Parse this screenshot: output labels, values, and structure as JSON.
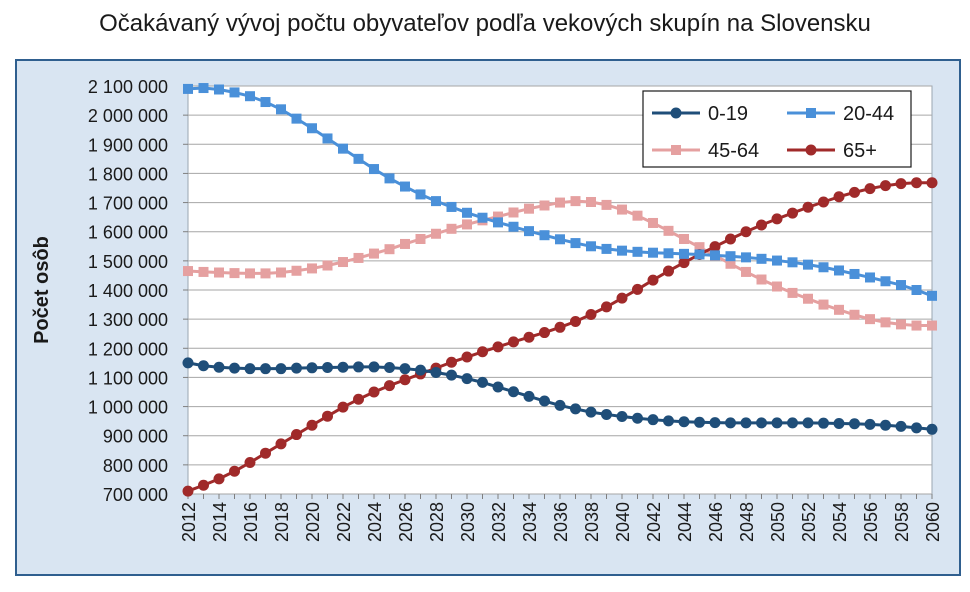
{
  "chart_data": {
    "type": "line",
    "title": "Očakávaný vývoj počtu obyvateľov podľa vekových skupín na Slovensku",
    "xlabel": "",
    "ylabel": "Počet osôb",
    "ylim": [
      700000,
      2100000
    ],
    "ytick_labels": [
      "700 000",
      "800 000",
      "900 000",
      "1 000 000",
      "1 100 000",
      "1 200 000",
      "1 300 000",
      "1 400 000",
      "1 500 000",
      "1 600 000",
      "1 700 000",
      "1 800 000",
      "1 900 000",
      "2 000 000",
      "2 100 000"
    ],
    "x": [
      2012,
      2013,
      2014,
      2015,
      2016,
      2017,
      2018,
      2019,
      2020,
      2021,
      2022,
      2023,
      2024,
      2025,
      2026,
      2027,
      2028,
      2029,
      2030,
      2031,
      2032,
      2033,
      2034,
      2035,
      2036,
      2037,
      2038,
      2039,
      2040,
      2041,
      2042,
      2043,
      2044,
      2045,
      2046,
      2047,
      2048,
      2049,
      2050,
      2051,
      2052,
      2053,
      2054,
      2055,
      2056,
      2057,
      2058,
      2059,
      2060
    ],
    "xtick_labels": [
      "2012",
      "2014",
      "2016",
      "2018",
      "2020",
      "2022",
      "2024",
      "2026",
      "2028",
      "2030",
      "2032",
      "2034",
      "2036",
      "2038",
      "2040",
      "2042",
      "2044",
      "2046",
      "2048",
      "2050",
      "2052",
      "2054",
      "2056",
      "2058",
      "2060"
    ],
    "grid": "horizontal",
    "legend_position": "top-right",
    "series": [
      {
        "name": "0-19",
        "color": "#1f4e79",
        "marker": "circle",
        "values": [
          1150000,
          1140000,
          1135000,
          1132000,
          1130000,
          1130000,
          1130000,
          1132000,
          1133000,
          1134000,
          1135000,
          1136000,
          1136000,
          1134000,
          1130000,
          1125000,
          1117000,
          1108000,
          1096000,
          1083000,
          1067000,
          1051000,
          1035000,
          1019000,
          1004000,
          992000,
          981000,
          973000,
          966000,
          960000,
          955000,
          951000,
          948000,
          946000,
          945000,
          944000,
          944000,
          944000,
          944000,
          944000,
          944000,
          943000,
          942000,
          941000,
          939000,
          936000,
          932000,
          927000,
          922000
        ]
      },
      {
        "name": "20-44",
        "color": "#4a90d9",
        "marker": "square",
        "values": [
          2090000,
          2093000,
          2088000,
          2078000,
          2065000,
          2045000,
          2020000,
          1988000,
          1955000,
          1920000,
          1885000,
          1850000,
          1815000,
          1783000,
          1755000,
          1728000,
          1705000,
          1685000,
          1665000,
          1648000,
          1632000,
          1617000,
          1602000,
          1588000,
          1574000,
          1561000,
          1550000,
          1541000,
          1535000,
          1531000,
          1528000,
          1526000,
          1524000,
          1522000,
          1519000,
          1516000,
          1512000,
          1507000,
          1501000,
          1495000,
          1487000,
          1478000,
          1467000,
          1455000,
          1443000,
          1430000,
          1417000,
          1400000,
          1380000
        ]
      },
      {
        "name": "45-64",
        "color": "#e5a0a0",
        "marker": "square",
        "values": [
          1465000,
          1462000,
          1460000,
          1458000,
          1457000,
          1457000,
          1460000,
          1466000,
          1474000,
          1484000,
          1496000,
          1510000,
          1525000,
          1540000,
          1558000,
          1575000,
          1593000,
          1610000,
          1625000,
          1639000,
          1652000,
          1666000,
          1679000,
          1690000,
          1700000,
          1705000,
          1702000,
          1692000,
          1676000,
          1655000,
          1630000,
          1603000,
          1575000,
          1547000,
          1518000,
          1490000,
          1462000,
          1436000,
          1412000,
          1390000,
          1370000,
          1350000,
          1332000,
          1315000,
          1300000,
          1289000,
          1282000,
          1278000,
          1278000
        ]
      },
      {
        "name": "65+",
        "color": "#a02a2a",
        "marker": "circle",
        "values": [
          710000,
          730000,
          752000,
          778000,
          808000,
          840000,
          872000,
          904000,
          936000,
          967000,
          998000,
          1025000,
          1050000,
          1072000,
          1092000,
          1112000,
          1132000,
          1152000,
          1170000,
          1188000,
          1205000,
          1222000,
          1238000,
          1254000,
          1272000,
          1292000,
          1316000,
          1342000,
          1372000,
          1402000,
          1434000,
          1465000,
          1494000,
          1522000,
          1549000,
          1575000,
          1600000,
          1623000,
          1644000,
          1664000,
          1684000,
          1702000,
          1720000,
          1735000,
          1748000,
          1758000,
          1765000,
          1768000,
          1768000
        ]
      }
    ]
  }
}
